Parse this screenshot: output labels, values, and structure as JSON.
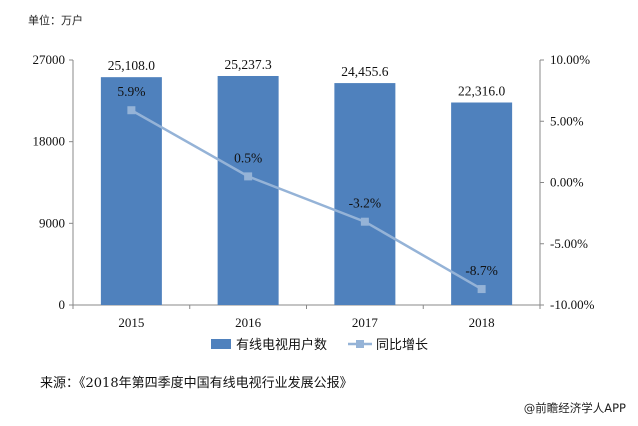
{
  "unit_label": "单位：万户",
  "source": "来源：《2018年第四季度中国有线电视行业发展公报》",
  "watermark": "@前瞻经济学人APP",
  "chart_data": {
    "type": "bar",
    "categories": [
      "2015",
      "2016",
      "2017",
      "2018"
    ],
    "series": [
      {
        "name": "有线电视用户数",
        "kind": "bar",
        "axis": "left",
        "values": [
          25108.0,
          25237.3,
          24455.6,
          22316.0
        ],
        "labels": [
          "25,108.0",
          "25,237.3",
          "24,455.6",
          "22,316.0"
        ],
        "color": "#4f81bd"
      },
      {
        "name": "同比增长",
        "kind": "line",
        "axis": "right",
        "values": [
          5.9,
          0.5,
          -3.2,
          -8.7
        ],
        "labels": [
          "5.9%",
          "0.5%",
          "-3.2%",
          "-8.7%"
        ],
        "color": "#95b3d7"
      }
    ],
    "left_axis": {
      "ylim": [
        0,
        27000
      ],
      "ticks": [
        "0",
        "9000",
        "18000",
        "27000"
      ]
    },
    "right_axis": {
      "ylim": [
        -10,
        10
      ],
      "ticks": [
        "-10.00%",
        "-5.00%",
        "0.00%",
        "5.00%",
        "10.00%"
      ]
    },
    "grid": false,
    "legend_position": "bottom"
  }
}
